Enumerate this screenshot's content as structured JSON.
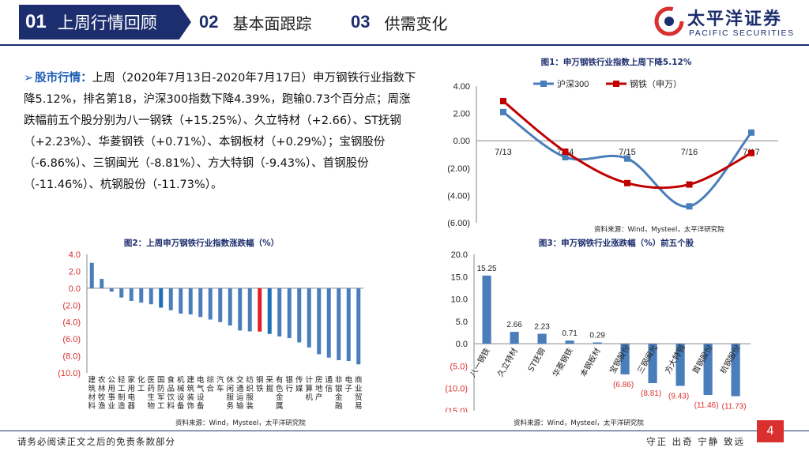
{
  "tabs": [
    {
      "num": "01",
      "label": "上周行情回顾"
    },
    {
      "num": "02",
      "label": "基本面跟踪"
    },
    {
      "num": "03",
      "label": "供需变化"
    }
  ],
  "logo": {
    "cn": "太平洋证券",
    "en": "PACIFIC SECURITIES"
  },
  "summary": {
    "keyword": "股市行情：",
    "text": "上周（2020年7月13日-2020年7月17日）申万钢铁行业指数下降5.12%，排名第18，沪深300指数下降4.39%，跑输0.73个百分点；周涨跌幅前五个股分别为八一钢铁（+15.25%）、久立特材（+2.66）、ST抚钢（+2.23%）、华菱钢铁（+0.71%）、本钢板材（+0.29%）；宝钢股份（-6.86%）、三钢闽光（-8.81%）、方大特钢（-9.43%）、首钢股份（-11.46%）、杭钢股份（-11.73%）。"
  },
  "chart_data": [
    {
      "type": "line",
      "title": "图1：申万钢铁行业指数上周下降5.12%",
      "source": "资料来源：Wind，Mysteel，太平洋研究院",
      "x": [
        "7/13",
        "7/14",
        "7/15",
        "7/16",
        "7/17"
      ],
      "yticks": [
        "4.00",
        "2.00",
        "0.00",
        "(2.00)",
        "(4.00)",
        "(6.00)"
      ],
      "ylim": [
        -6,
        4
      ],
      "series": [
        {
          "name": "沪深300",
          "values": [
            2.1,
            -1.2,
            -1.3,
            -4.8,
            0.6
          ],
          "color": "#4a7ebb"
        },
        {
          "name": "钢铁（申万）",
          "values": [
            2.9,
            -0.8,
            -3.1,
            -3.2,
            -0.9
          ],
          "color": "#c00000"
        }
      ],
      "legend": "top"
    },
    {
      "type": "bar",
      "title": "图2：上周申万钢铁行业指数涨跌幅（%）",
      "source": "资料来源：Wind，Mysteel，太平洋研究院",
      "yticks": [
        "4.0",
        "2.0",
        "0.0",
        "(2.0)",
        "(4.0)",
        "(6.0)",
        "(8.0)",
        "(10.0)"
      ],
      "ylim": [
        -10,
        4
      ],
      "categories": [
        "建筑材料",
        "农林牧渔",
        "公用事业",
        "轻工制造",
        "家用电器",
        "化工",
        "医药生物",
        "国防军工",
        "食品饮料",
        "机械设备",
        "建筑装饰",
        "电气设备",
        "综合",
        "汽车",
        "休闲服务",
        "交通运输",
        "纺织服装",
        "钢铁",
        "采掘",
        "有色金属",
        "银行",
        "传媒",
        "计算机",
        "房地产",
        "通信",
        "非银金融",
        "电子",
        "商业贸易"
      ],
      "values": [
        3.0,
        1.1,
        -0.4,
        -1.1,
        -1.5,
        -1.7,
        -1.9,
        -2.3,
        -2.6,
        -3.0,
        -3.1,
        -3.4,
        -3.7,
        -4.0,
        -4.4,
        -5.0,
        -5.1,
        -5.12,
        -5.4,
        -5.7,
        -5.9,
        -6.4,
        -7.0,
        -7.8,
        -8.2,
        -8.5,
        -8.6,
        -9.0
      ],
      "highlight": {
        "钢铁": "#e02020",
        "采掘": "#1d6fb8",
        "国防军工": "#1d6fb8"
      },
      "color": "#4a7ebb"
    },
    {
      "type": "bar",
      "title": "图3：申万钢铁行业涨跌幅（%）前五个股",
      "source": "资料来源：Wind，Mysteel，太平洋研究院",
      "yticks": [
        "20.0",
        "15.0",
        "10.0",
        "5.0",
        "0.0",
        "(5.0)",
        "(10.0)",
        "(15.0)"
      ],
      "ylim": [
        -15,
        20
      ],
      "categories": [
        "八一钢铁",
        "久立特材",
        "ST抚钢",
        "华菱钢铁",
        "本钢板材",
        "宝钢股份",
        "三钢闽光",
        "方大特钢",
        "首钢股份",
        "杭钢股份"
      ],
      "values": [
        15.25,
        2.66,
        2.23,
        0.71,
        0.29,
        -6.86,
        -8.81,
        -9.43,
        -11.46,
        -11.73
      ],
      "labels": [
        "15.25",
        "2.66",
        "2.23",
        "0.71",
        "0.29",
        "(6.86)",
        "(8.81)",
        "(9.43)",
        "(11.46)",
        "(11.73)"
      ],
      "color": "#4a7ebb"
    }
  ],
  "footer": {
    "disclaimer": "请务必阅读正文之后的免责条款部分",
    "motto": "守正  出奇  宁静  致远",
    "page": "4"
  }
}
